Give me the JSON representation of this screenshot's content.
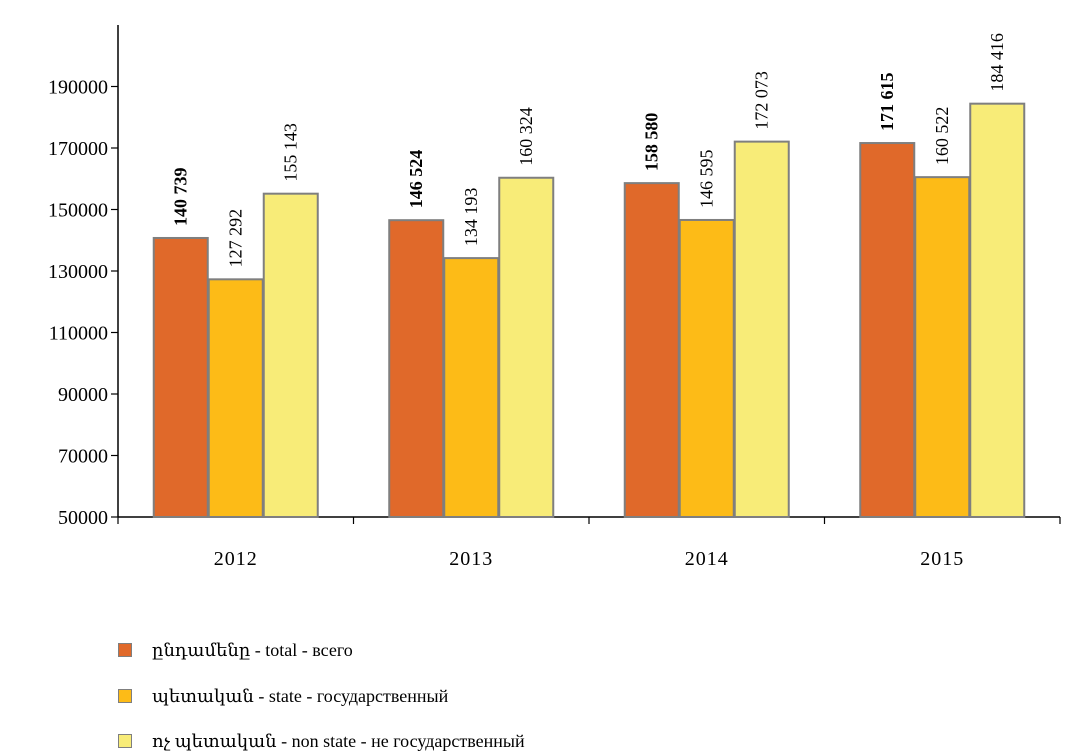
{
  "chart_data": {
    "type": "bar",
    "title": "",
    "xlabel": "",
    "ylabel": "",
    "ylim": [
      50000,
      210000
    ],
    "yticks": [
      50000,
      70000,
      90000,
      110000,
      130000,
      150000,
      170000,
      190000
    ],
    "ytick_labels": [
      "50000",
      "70000",
      "90000",
      "110000",
      "130000",
      "150000",
      "170000",
      "190000"
    ],
    "categories": [
      "2012",
      "2013",
      "2014",
      "2015"
    ],
    "grid": false,
    "legend_position": "bottom",
    "series": [
      {
        "name": "ընդամենը - total - всего",
        "color": "#E0692A",
        "label_weight": "bold",
        "values": [
          140739,
          146524,
          158580,
          171615
        ],
        "labels": [
          "140 739",
          "146 524",
          "158 580",
          "171 615"
        ]
      },
      {
        "name": "պետական - state - государственный",
        "color": "#FDBB17",
        "label_weight": "normal",
        "values": [
          127292,
          134193,
          146595,
          160522
        ],
        "labels": [
          "127 292",
          "134 193",
          "146 595",
          "160 522"
        ]
      },
      {
        "name": "ոչ պետական -  non state - не государственный",
        "color": "#F8EC78",
        "label_weight": "normal",
        "values": [
          155143,
          160324,
          172073,
          184416
        ],
        "labels": [
          "155 143",
          "160 324",
          "172 073",
          "184 416"
        ]
      }
    ]
  }
}
